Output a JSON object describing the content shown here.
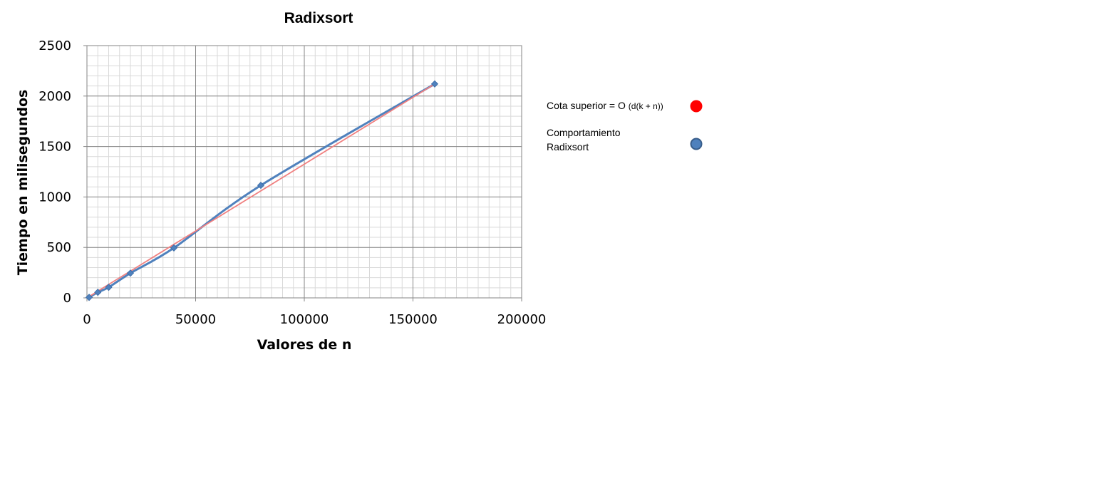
{
  "chart_data": {
    "type": "line",
    "title": "Radixsort",
    "xlabel": "Valores de n",
    "ylabel": "Tiempo en milisegundos",
    "xlim": [
      0,
      200000
    ],
    "ylim": [
      0,
      2500
    ],
    "x_ticks": [
      "0",
      "50000",
      "100000",
      "150000",
      "200000"
    ],
    "y_ticks": [
      "0",
      "500",
      "1000",
      "1500",
      "2000",
      "2500"
    ],
    "grid": true,
    "legend_position": "right",
    "series": [
      {
        "name": "Cota superior = O (d(k + n))",
        "name_main": "Cota superior = O ",
        "name_formula": "(d(k + n))",
        "color": "#ff0000",
        "line_color": "#f08080",
        "marker": "none",
        "x": [
          1000,
          5000,
          10000,
          20000,
          40000,
          80000,
          160000
        ],
        "y": [
          13,
          66,
          133,
          265,
          530,
          1060,
          2120
        ]
      },
      {
        "name": "Comportamiento Radixsort",
        "name_line1": "Comportamiento",
        "name_line2": "Radixsort",
        "color": "#4f81bd",
        "line_color": "#4f81bd",
        "marker": "diamond",
        "x": [
          1000,
          5000,
          10000,
          20000,
          40000,
          80000,
          160000
        ],
        "y": [
          5,
          55,
          105,
          245,
          495,
          1115,
          2120
        ]
      }
    ]
  }
}
